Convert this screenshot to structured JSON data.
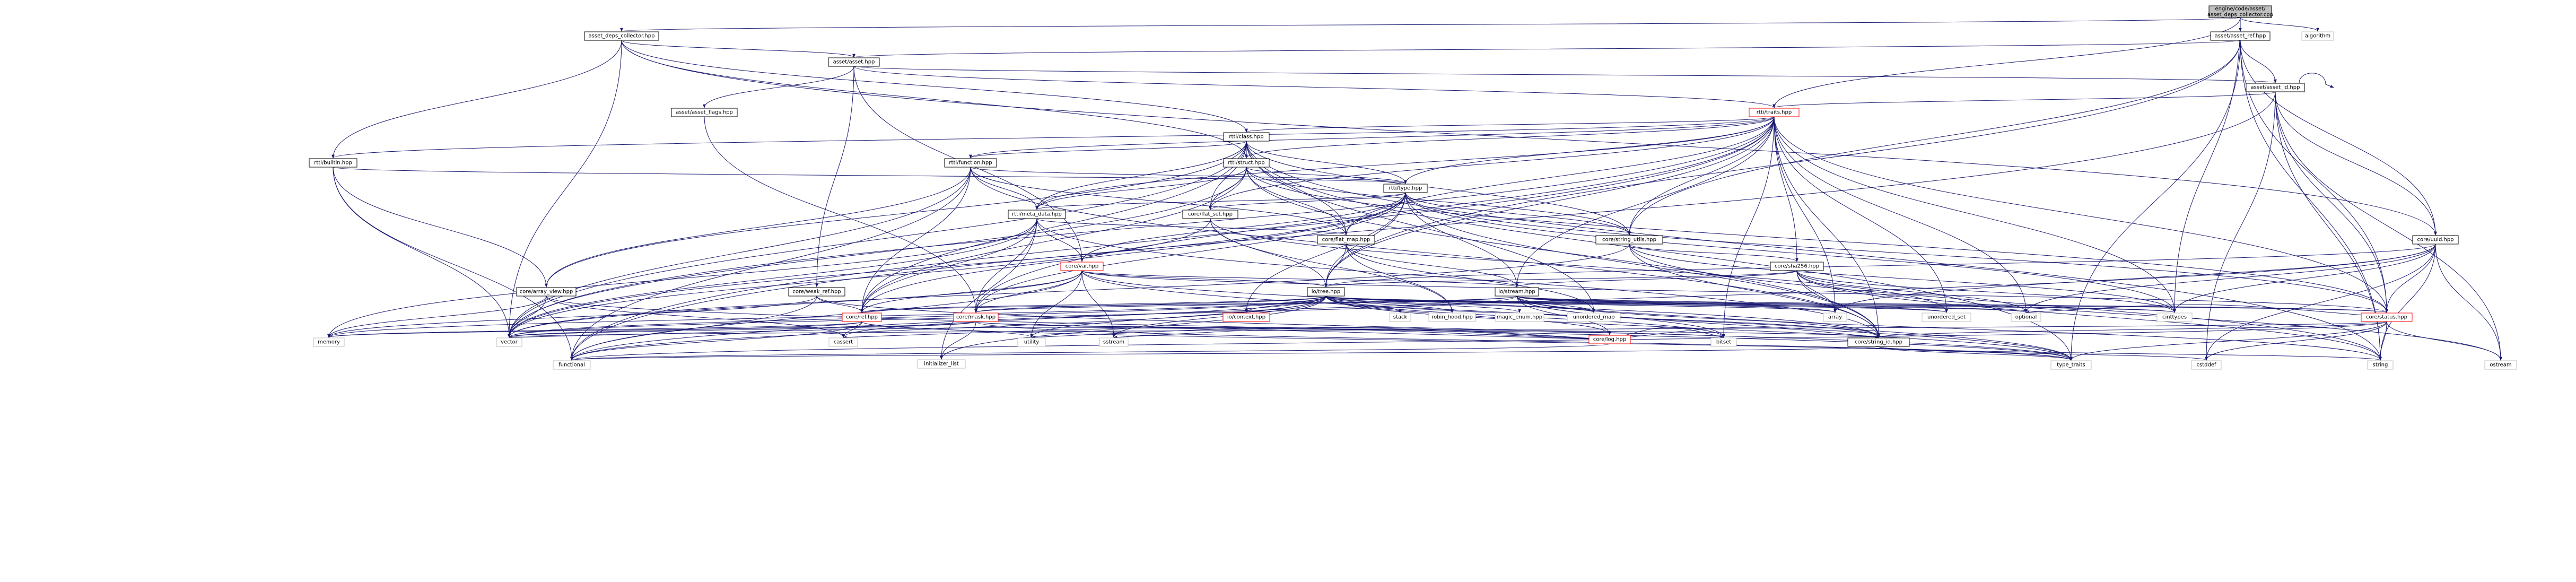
{
  "diagram": {
    "colors": {
      "edge": "#191970",
      "root_fill": "#bfbfbf",
      "root_border": "#000000",
      "node_fill": "#ffffff",
      "node_border": "#000000",
      "incomplete_border": "#ff0000",
      "external_border": "#bfbfbf"
    },
    "nodes": [
      {
        "id": "root",
        "label": "engine/code/asset/asset_deps_collector.cpp",
        "style": "root"
      },
      {
        "id": "algorithm",
        "label": "algorithm",
        "style": "external"
      },
      {
        "id": "deps_collector",
        "label": "asset_deps_collector.hpp",
        "style": "normal"
      },
      {
        "id": "asset_ref",
        "label": "asset/asset_ref.hpp",
        "style": "normal"
      },
      {
        "id": "asset_hpp",
        "label": "asset/asset.hpp",
        "style": "normal"
      },
      {
        "id": "asset_id",
        "label": "asset/asset_id.hpp",
        "style": "normal"
      },
      {
        "id": "asset_flags",
        "label": "asset/asset_flags.hpp",
        "style": "normal"
      },
      {
        "id": "traits",
        "label": "rtti/traits.hpp",
        "style": "incomplete"
      },
      {
        "id": "class",
        "label": "rtti/class.hpp",
        "style": "normal"
      },
      {
        "id": "builtin",
        "label": "rtti/builtin.hpp",
        "style": "normal"
      },
      {
        "id": "function",
        "label": "rtti/function.hpp",
        "style": "normal"
      },
      {
        "id": "struct",
        "label": "rtti/struct.hpp",
        "style": "normal"
      },
      {
        "id": "type",
        "label": "rtti/type.hpp",
        "style": "normal"
      },
      {
        "id": "meta_data",
        "label": "rtti/meta_data.hpp",
        "style": "normal"
      },
      {
        "id": "flat_set",
        "label": "core/flat_set.hpp",
        "style": "normal"
      },
      {
        "id": "flat_map",
        "label": "core/flat_map.hpp",
        "style": "normal"
      },
      {
        "id": "string_utils",
        "label": "core/string_utils.hpp",
        "style": "normal"
      },
      {
        "id": "uuid",
        "label": "core/uuid.hpp",
        "style": "normal"
      },
      {
        "id": "sha256",
        "label": "core/sha256.hpp",
        "style": "normal"
      },
      {
        "id": "var",
        "label": "core/var.hpp",
        "style": "incomplete"
      },
      {
        "id": "array_view",
        "label": "core/array_view.hpp",
        "style": "normal"
      },
      {
        "id": "weak_ref",
        "label": "core/weak_ref.hpp",
        "style": "normal"
      },
      {
        "id": "tree",
        "label": "io/tree.hpp",
        "style": "normal"
      },
      {
        "id": "stream",
        "label": "io/stream.hpp",
        "style": "normal"
      },
      {
        "id": "ref",
        "label": "core/ref.hpp",
        "style": "incomplete"
      },
      {
        "id": "mask",
        "label": "core/mask.hpp",
        "style": "incomplete"
      },
      {
        "id": "context",
        "label": "io/context.hpp",
        "style": "incomplete"
      },
      {
        "id": "stack",
        "label": "stack",
        "style": "external"
      },
      {
        "id": "robin_hood",
        "label": "robin_hood.hpp",
        "style": "external"
      },
      {
        "id": "magic_enum",
        "label": "magic_enum.hpp",
        "style": "external"
      },
      {
        "id": "unordered_map",
        "label": "unordered_map",
        "style": "external"
      },
      {
        "id": "log",
        "label": "core/log.hpp",
        "style": "incomplete"
      },
      {
        "id": "array",
        "label": "array",
        "style": "external"
      },
      {
        "id": "unordered_set",
        "label": "unordered_set",
        "style": "external"
      },
      {
        "id": "optional",
        "label": "optional",
        "style": "external"
      },
      {
        "id": "cinttypes",
        "label": "cinttypes",
        "style": "external"
      },
      {
        "id": "status",
        "label": "core/status.hpp",
        "style": "incomplete"
      },
      {
        "id": "memory",
        "label": "memory",
        "style": "external"
      },
      {
        "id": "vector",
        "label": "vector",
        "style": "external"
      },
      {
        "id": "cassert",
        "label": "cassert",
        "style": "external"
      },
      {
        "id": "initializer_list",
        "label": "initializer_list",
        "style": "external"
      },
      {
        "id": "utility",
        "label": "utility",
        "style": "external"
      },
      {
        "id": "sstream",
        "label": "sstream",
        "style": "external"
      },
      {
        "id": "bitset",
        "label": "bitset",
        "style": "external"
      },
      {
        "id": "string_id",
        "label": "core/string_id.hpp",
        "style": "normal"
      },
      {
        "id": "functional",
        "label": "functional",
        "style": "external"
      },
      {
        "id": "type_traits",
        "label": "type_traits",
        "style": "external"
      },
      {
        "id": "cstddef",
        "label": "cstddef",
        "style": "external"
      },
      {
        "id": "string",
        "label": "string",
        "style": "external"
      },
      {
        "id": "ostream",
        "label": "ostream",
        "style": "external"
      }
    ],
    "edges": [
      [
        "root",
        "algorithm"
      ],
      [
        "root",
        "deps_collector"
      ],
      [
        "root",
        "asset_ref"
      ],
      [
        "root",
        "cinttypes"
      ],
      [
        "root",
        "traits"
      ],
      [
        "deps_collector",
        "asset_hpp"
      ],
      [
        "deps_collector",
        "builtin"
      ],
      [
        "deps_collector",
        "class"
      ],
      [
        "deps_collector",
        "struct"
      ],
      [
        "deps_collector",
        "vector"
      ],
      [
        "deps_collector",
        "uuid"
      ],
      [
        "asset_ref",
        "asset_hpp"
      ],
      [
        "asset_ref",
        "asset_id"
      ],
      [
        "asset_ref",
        "uuid"
      ],
      [
        "asset_ref",
        "string_utils"
      ],
      [
        "asset_ref",
        "status"
      ],
      [
        "asset_ref",
        "string"
      ],
      [
        "asset_ref",
        "type_traits"
      ],
      [
        "asset_ref",
        "tree"
      ],
      [
        "asset_hpp",
        "asset_id"
      ],
      [
        "asset_hpp",
        "asset_flags"
      ],
      [
        "asset_hpp",
        "traits"
      ],
      [
        "asset_hpp",
        "weak_ref"
      ],
      [
        "asset_hpp",
        "var"
      ],
      [
        "asset_id",
        "asset_id"
      ],
      [
        "asset_id",
        "traits"
      ],
      [
        "asset_id",
        "uuid"
      ],
      [
        "asset_id",
        "string"
      ],
      [
        "asset_id",
        "ostream"
      ],
      [
        "asset_id",
        "cstddef"
      ],
      [
        "asset_id",
        "functional"
      ],
      [
        "asset_id",
        "status"
      ],
      [
        "asset_flags",
        "mask"
      ],
      [
        "traits",
        "class"
      ],
      [
        "traits",
        "builtin"
      ],
      [
        "traits",
        "function"
      ],
      [
        "traits",
        "struct"
      ],
      [
        "traits",
        "type"
      ],
      [
        "traits",
        "meta_data"
      ],
      [
        "traits",
        "flat_set"
      ],
      [
        "traits",
        "flat_map"
      ],
      [
        "traits",
        "string_utils"
      ],
      [
        "traits",
        "sha256"
      ],
      [
        "traits",
        "tree"
      ],
      [
        "traits",
        "stream"
      ],
      [
        "traits",
        "optional"
      ],
      [
        "traits",
        "unordered_set"
      ],
      [
        "traits",
        "cinttypes"
      ],
      [
        "traits",
        "status"
      ],
      [
        "traits",
        "string_id"
      ],
      [
        "traits",
        "functional"
      ],
      [
        "traits",
        "bitset"
      ],
      [
        "traits",
        "array"
      ],
      [
        "traits",
        "vector"
      ],
      [
        "traits",
        "mask"
      ],
      [
        "class",
        "struct"
      ],
      [
        "class",
        "type"
      ],
      [
        "class",
        "meta_data"
      ],
      [
        "class",
        "flat_set"
      ],
      [
        "class",
        "flat_map"
      ],
      [
        "class",
        "string_utils"
      ],
      [
        "class",
        "function"
      ],
      [
        "class",
        "ref"
      ],
      [
        "class",
        "vector"
      ],
      [
        "class",
        "array_view"
      ],
      [
        "class",
        "unordered_map"
      ],
      [
        "class",
        "string"
      ],
      [
        "class",
        "type_traits"
      ],
      [
        "builtin",
        "type"
      ],
      [
        "builtin",
        "array_view"
      ],
      [
        "builtin",
        "functional"
      ],
      [
        "builtin",
        "vector"
      ],
      [
        "function",
        "type"
      ],
      [
        "function",
        "meta_data"
      ],
      [
        "function",
        "array_view"
      ],
      [
        "function",
        "vector"
      ],
      [
        "function",
        "functional"
      ],
      [
        "function",
        "ref"
      ],
      [
        "function",
        "string_id"
      ],
      [
        "function",
        "flat_map"
      ],
      [
        "struct",
        "type"
      ],
      [
        "struct",
        "meta_data"
      ],
      [
        "struct",
        "flat_set"
      ],
      [
        "struct",
        "flat_map"
      ],
      [
        "struct",
        "string_utils"
      ],
      [
        "struct",
        "vector"
      ],
      [
        "struct",
        "ref"
      ],
      [
        "struct",
        "string_id"
      ],
      [
        "struct",
        "status"
      ],
      [
        "type",
        "meta_data"
      ],
      [
        "type",
        "flat_set"
      ],
      [
        "type",
        "flat_map"
      ],
      [
        "type",
        "string_utils"
      ],
      [
        "type",
        "tree"
      ],
      [
        "type",
        "stream"
      ],
      [
        "type",
        "var"
      ],
      [
        "type",
        "vector"
      ],
      [
        "type",
        "ref"
      ],
      [
        "type",
        "string_id"
      ],
      [
        "type",
        "status"
      ],
      [
        "type",
        "mask"
      ],
      [
        "type",
        "context"
      ],
      [
        "type",
        "cinttypes"
      ],
      [
        "meta_data",
        "var"
      ],
      [
        "meta_data",
        "ref"
      ],
      [
        "meta_data",
        "mask"
      ],
      [
        "meta_data",
        "vector"
      ],
      [
        "meta_data",
        "memory"
      ],
      [
        "meta_data",
        "initializer_list"
      ],
      [
        "meta_data",
        "string_id"
      ],
      [
        "meta_data",
        "flat_map"
      ],
      [
        "flat_set",
        "tree"
      ],
      [
        "flat_set",
        "robin_hood"
      ],
      [
        "flat_set",
        "unordered_set"
      ],
      [
        "flat_set",
        "vector"
      ],
      [
        "flat_map",
        "tree"
      ],
      [
        "flat_map",
        "robin_hood"
      ],
      [
        "flat_map",
        "unordered_map"
      ],
      [
        "flat_map",
        "stream"
      ],
      [
        "string_utils",
        "sha256"
      ],
      [
        "string_utils",
        "string"
      ],
      [
        "string_utils",
        "vector"
      ],
      [
        "string_utils",
        "cinttypes"
      ],
      [
        "string_utils",
        "string_id"
      ],
      [
        "uuid",
        "tree"
      ],
      [
        "uuid",
        "string"
      ],
      [
        "uuid",
        "ostream"
      ],
      [
        "uuid",
        "cstddef"
      ],
      [
        "uuid",
        "array"
      ],
      [
        "uuid",
        "optional"
      ],
      [
        "uuid",
        "functional"
      ],
      [
        "uuid",
        "status"
      ],
      [
        "uuid",
        "cinttypes"
      ],
      [
        "sha256",
        "tree"
      ],
      [
        "sha256",
        "array"
      ],
      [
        "sha256",
        "string"
      ],
      [
        "sha256",
        "cinttypes"
      ],
      [
        "sha256",
        "optional"
      ],
      [
        "sha256",
        "ostream"
      ],
      [
        "sha256",
        "stream"
      ],
      [
        "sha256",
        "string_id"
      ],
      [
        "var",
        "tree"
      ],
      [
        "var",
        "stream"
      ],
      [
        "var",
        "ref"
      ],
      [
        "var",
        "mask"
      ],
      [
        "var",
        "vector"
      ],
      [
        "var",
        "sstream"
      ],
      [
        "var",
        "functional"
      ],
      [
        "var",
        "string_id"
      ],
      [
        "var",
        "type_traits"
      ],
      [
        "var",
        "utility"
      ],
      [
        "var",
        "status"
      ],
      [
        "array_view",
        "vector"
      ],
      [
        "array_view",
        "cassert"
      ],
      [
        "array_view",
        "type_traits"
      ],
      [
        "array_view",
        "memory"
      ],
      [
        "weak_ref",
        "ref"
      ],
      [
        "weak_ref",
        "memory"
      ],
      [
        "weak_ref",
        "functional"
      ],
      [
        "weak_ref",
        "type_traits"
      ],
      [
        "tree",
        "ref"
      ],
      [
        "tree",
        "mask"
      ],
      [
        "tree",
        "context"
      ],
      [
        "tree",
        "stack"
      ],
      [
        "tree",
        "robin_hood"
      ],
      [
        "tree",
        "magic_enum"
      ],
      [
        "tree",
        "unordered_map"
      ],
      [
        "tree",
        "log"
      ],
      [
        "tree",
        "array"
      ],
      [
        "tree",
        "unordered_set"
      ],
      [
        "tree",
        "optional"
      ],
      [
        "tree",
        "cinttypes"
      ],
      [
        "tree",
        "status"
      ],
      [
        "tree",
        "vector"
      ],
      [
        "tree",
        "memory"
      ],
      [
        "tree",
        "string_id"
      ],
      [
        "tree",
        "cassert"
      ],
      [
        "tree",
        "functional"
      ],
      [
        "tree",
        "type_traits"
      ],
      [
        "tree",
        "bitset"
      ],
      [
        "tree",
        "sstream"
      ],
      [
        "tree",
        "initializer_list"
      ],
      [
        "tree",
        "utility"
      ],
      [
        "stream",
        "log"
      ],
      [
        "stream",
        "status"
      ],
      [
        "stream",
        "ref"
      ],
      [
        "stream",
        "mask"
      ],
      [
        "stream",
        "string_id"
      ],
      [
        "stream",
        "array"
      ],
      [
        "stream",
        "vector"
      ],
      [
        "stream",
        "cinttypes"
      ],
      [
        "stream",
        "string"
      ],
      [
        "stream",
        "unordered_map"
      ],
      [
        "stream",
        "unordered_set"
      ],
      [
        "stream",
        "optional"
      ],
      [
        "stream",
        "type_traits"
      ],
      [
        "stream",
        "bitset"
      ],
      [
        "ref",
        "memory"
      ],
      [
        "ref",
        "vector"
      ],
      [
        "ref",
        "utility"
      ],
      [
        "ref",
        "functional"
      ],
      [
        "ref",
        "type_traits"
      ],
      [
        "ref",
        "cassert"
      ],
      [
        "mask",
        "vector"
      ],
      [
        "mask",
        "type_traits"
      ],
      [
        "mask",
        "bitset"
      ],
      [
        "mask",
        "initializer_list"
      ],
      [
        "mask",
        "string_id"
      ],
      [
        "mask",
        "memory"
      ],
      [
        "log",
        "string_id"
      ],
      [
        "log",
        "vector"
      ],
      [
        "log",
        "sstream"
      ],
      [
        "log",
        "utility"
      ],
      [
        "log",
        "bitset"
      ],
      [
        "log",
        "cassert"
      ],
      [
        "log",
        "functional"
      ],
      [
        "status",
        "string_id"
      ],
      [
        "status",
        "cstddef"
      ],
      [
        "status",
        "string"
      ],
      [
        "status",
        "type_traits"
      ],
      [
        "status",
        "functional"
      ],
      [
        "status",
        "ostream"
      ],
      [
        "status",
        "vector"
      ],
      [
        "status",
        "optional"
      ],
      [
        "string_id",
        "cstddef"
      ],
      [
        "string_id",
        "string"
      ],
      [
        "string_id",
        "type_traits"
      ],
      [
        "string_id",
        "functional"
      ]
    ]
  }
}
